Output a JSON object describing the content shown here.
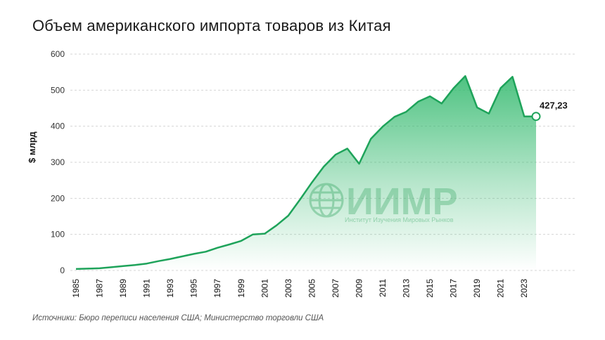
{
  "title": "Объем американского импорта товаров из Китая",
  "source": "Источники: Бюро переписи населения США; Министерство торговли США",
  "watermark": {
    "name": "ИИМР",
    "subtitle": "Институт Изучения Мировых Рынков"
  },
  "colors": {
    "line": "#1ea35a",
    "fill": "#2fb86b",
    "grid": "#d5d5d5"
  },
  "chart_data": {
    "type": "area",
    "title": "Объем американского импорта товаров из Китая",
    "xlabel": "",
    "ylabel": "$ млрд",
    "ylim": [
      0,
      600
    ],
    "grid": true,
    "yticks": [
      "0",
      "100",
      "200",
      "300",
      "400",
      "500",
      "600"
    ],
    "xticks": [
      "1985",
      "1987",
      "1989",
      "1991",
      "1993",
      "1995",
      "1997",
      "1999",
      "2001",
      "2003",
      "2005",
      "2007",
      "2009",
      "2011",
      "2013",
      "2015",
      "2017",
      "2019",
      "2021",
      "2023"
    ],
    "x": [
      1985,
      1986,
      1987,
      1988,
      1989,
      1990,
      1991,
      1992,
      1993,
      1994,
      1995,
      1996,
      1997,
      1998,
      1999,
      2000,
      2001,
      2002,
      2003,
      2004,
      2005,
      2006,
      2007,
      2008,
      2009,
      2010,
      2011,
      2012,
      2013,
      2014,
      2015,
      2016,
      2017,
      2018,
      2019,
      2020,
      2021,
      2022,
      2023,
      2024
    ],
    "values": [
      4,
      5,
      6,
      9,
      12,
      15,
      19,
      26,
      32,
      39,
      46,
      52,
      63,
      72,
      82,
      100,
      102,
      125,
      152,
      197,
      244,
      288,
      321,
      338,
      296,
      365,
      399,
      426,
      440,
      468,
      483,
      463,
      505,
      539,
      452,
      435,
      506,
      537,
      427,
      427.23
    ],
    "end_label": "427,23"
  }
}
